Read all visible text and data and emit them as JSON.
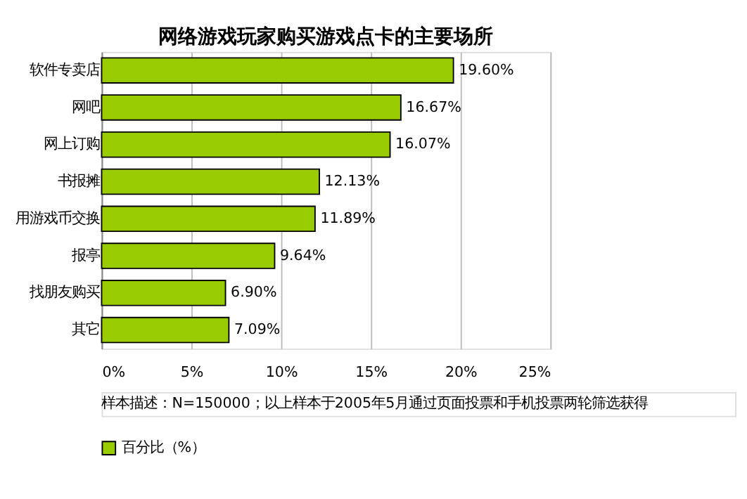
{
  "chart_data": {
    "type": "bar",
    "orientation": "horizontal",
    "title": "网络游戏玩家购买游戏点卡的主要场所",
    "categories": [
      "软件专卖店",
      "网吧",
      "网上订购",
      "书报摊",
      "用游戏币交换",
      "报亭",
      "找朋友购买",
      "其它"
    ],
    "series": [
      {
        "name": "百分比（%）",
        "color": "#99cc00",
        "values": [
          19.6,
          16.67,
          16.07,
          12.13,
          11.89,
          9.64,
          6.9,
          7.09
        ],
        "value_labels": [
          "19.60%",
          "16.67%",
          "16.07%",
          "12.13%",
          "11.89%",
          "9.64%",
          "6.90%",
          "7.09%"
        ]
      }
    ],
    "xlim": [
      0,
      25
    ],
    "xticks": [
      {
        "value": 0,
        "label": "0%"
      },
      {
        "value": 5,
        "label": "5%"
      },
      {
        "value": 10,
        "label": "10%"
      },
      {
        "value": 15,
        "label": "15%"
      },
      {
        "value": 20,
        "label": "20%"
      },
      {
        "value": 25,
        "label": "25%"
      }
    ],
    "grid": "x",
    "legend": "bottom",
    "annotations": [
      "样本描述：N=150000；以上样本于2005年5月通过页面投票和手机投票两轮筛选获得"
    ]
  }
}
